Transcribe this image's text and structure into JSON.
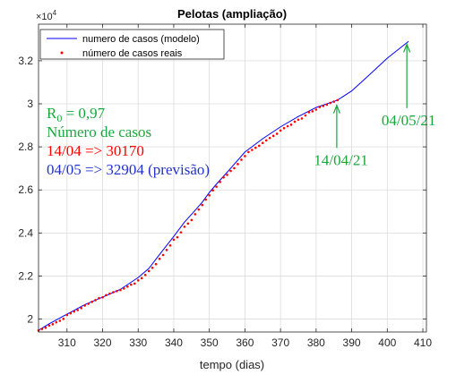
{
  "chart_data": {
    "type": "line",
    "title": "Pelotas (ampliação)",
    "xlabel": "tempo (dias)",
    "ylabel": "",
    "xlim": [
      302,
      411
    ],
    "ylim": [
      19400,
      33700
    ],
    "y_exponent_label": "×10",
    "y_exponent_power": "4",
    "grid": true,
    "legend_position": "top-left",
    "x_ticks": [
      310,
      320,
      330,
      340,
      350,
      360,
      370,
      380,
      390,
      400,
      410
    ],
    "x_tick_labels": [
      "310",
      "320",
      "330",
      "340",
      "350",
      "360",
      "370",
      "380",
      "390",
      "400",
      "410"
    ],
    "y_ticks": [
      20000,
      22000,
      24000,
      26000,
      28000,
      30000,
      32000
    ],
    "y_tick_labels": [
      "2",
      "2.2",
      "2.4",
      "2.6",
      "2.8",
      "3",
      "3.2"
    ],
    "series": [
      {
        "name": "numero de casos (modelo)",
        "style": "line",
        "color": "#0000ff",
        "x": [
          302,
          305,
          310,
          315,
          320,
          325,
          330,
          333,
          336,
          340,
          343,
          346,
          348,
          350,
          352,
          355,
          360,
          365,
          370,
          375,
          380,
          386,
          390,
          395,
          400,
          406
        ],
        "y": [
          19480,
          19780,
          20230,
          20670,
          21020,
          21380,
          21930,
          22350,
          23000,
          23840,
          24500,
          25050,
          25430,
          25880,
          26270,
          26820,
          27760,
          28380,
          28930,
          29410,
          29830,
          30170,
          30600,
          31350,
          32120,
          32904
        ]
      },
      {
        "name": "número de casos reais",
        "style": "points",
        "color": "#ff0000",
        "x": [
          302,
          303,
          304,
          305,
          306,
          307,
          308,
          309,
          310,
          311,
          312,
          313,
          314,
          315,
          316,
          317,
          318,
          319,
          320,
          321,
          322,
          323,
          324,
          325,
          326,
          327,
          328,
          329,
          330,
          331,
          332,
          333,
          334,
          335,
          336,
          337,
          338,
          339,
          340,
          341,
          342,
          343,
          344,
          345,
          346,
          347,
          348,
          349,
          350,
          351,
          352,
          353,
          354,
          355,
          356,
          357,
          358,
          359,
          360,
          361,
          362,
          363,
          364,
          365,
          366,
          367,
          368,
          369,
          370,
          371,
          372,
          373,
          374,
          375,
          376,
          377,
          378,
          379,
          380,
          381,
          382,
          383,
          384,
          385,
          386
        ],
        "y": [
          19470,
          19540,
          19600,
          19700,
          19760,
          19850,
          19920,
          20010,
          20190,
          20270,
          20350,
          20420,
          20510,
          20630,
          20710,
          20800,
          20880,
          20970,
          21010,
          21110,
          21180,
          21250,
          21300,
          21350,
          21420,
          21510,
          21600,
          21650,
          21800,
          21900,
          22050,
          22230,
          22380,
          22550,
          22800,
          22980,
          23210,
          23420,
          23690,
          23800,
          24030,
          24290,
          24440,
          24600,
          24870,
          25090,
          25300,
          25550,
          25750,
          25980,
          26150,
          26370,
          26580,
          26700,
          26880,
          27010,
          27200,
          27400,
          27570,
          27760,
          27860,
          27960,
          28050,
          28180,
          28300,
          28410,
          28510,
          28610,
          28760,
          28870,
          28960,
          29030,
          29170,
          29260,
          29320,
          29460,
          29610,
          29650,
          29730,
          29850,
          29900,
          29960,
          30040,
          30100,
          30170
        ]
      }
    ],
    "annotations": [
      {
        "id": "ann-14-04",
        "text": "14/04/21",
        "color": "#1aa83c",
        "arrow_from": [
          385.8,
          27950
        ],
        "arrow_to": [
          385.8,
          29930
        ],
        "text_at": [
          387,
          27150
        ]
      },
      {
        "id": "ann-04-05",
        "text": "04/05/21",
        "color": "#1aa83c",
        "arrow_from": [
          405.5,
          29800
        ],
        "arrow_to": [
          405.5,
          32770
        ],
        "text_at": [
          406,
          29000
        ]
      }
    ],
    "info_box": {
      "r0_label": "R",
      "r0_subscript": "0",
      "r0_value": " = 0,97",
      "line2": "Número de casos",
      "line3": "14/04 => 30170",
      "line4": "04/05 => 32904 (previsão)",
      "color_r0": "#1aa83c",
      "color_line2": "#1aa83c",
      "color_line3": "#ff0000",
      "color_line4": "#2233cc"
    }
  }
}
